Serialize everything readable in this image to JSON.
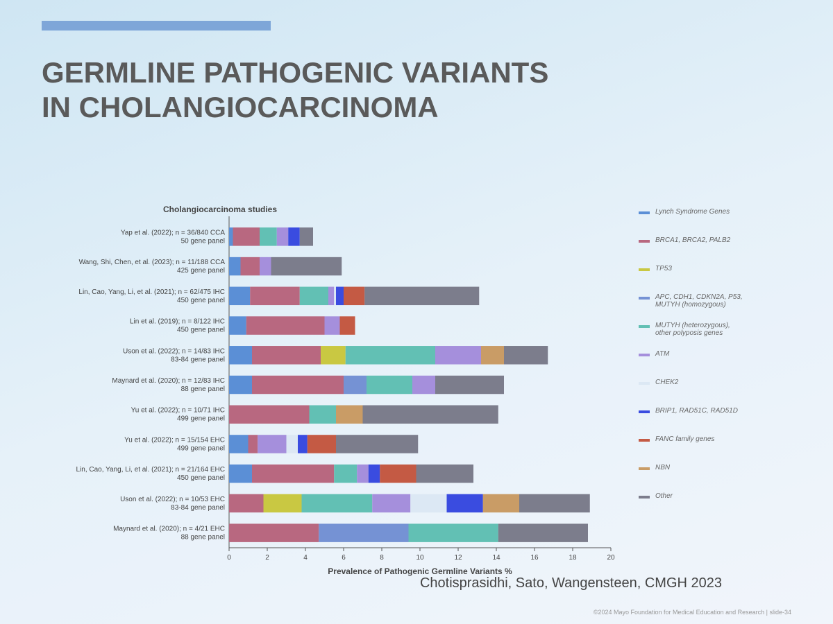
{
  "chart_data": {
    "type": "stacked-barh",
    "title": "GERMLINE PATHOGENIC VARIANTS IN CHOLANGIOCARCINOMA",
    "y_label": "Cholangiocarcinoma studies",
    "x_label": "Prevalence of Pathogenic Germline Variants %",
    "citation": "Chotisprasidhi, Sato, Wangensteen, CMGH 2023",
    "footer": "©2024 Mayo Foundation for Medical Education and Research | slide-34",
    "categories": [
      "Yap et al. (2022); n = 36/840 CCA",
      "Wang, Shi, Chen, et al. (2023); n = 11/188 CCA",
      "Lin, Cao, Yang, Li, et al. (2021); n = 62/475 IHC",
      "Lin et al. (2019); n = 8/122 IHC",
      "Uson et al. (2022); n = 14/83 IHC",
      "Maynard et al. (2020); n = 12/83 IHC",
      "Yu et al. (2022); n = 10/71 IHC",
      "Yu et al. (2022); n = 15/154 EHC",
      "Lin, Cao, Yang, Li, et al. (2021); n = 21/164 EHC",
      "Uson et al. (2022); n = 10/53 EHC",
      "Maynard et al. (2020); n = 4/21 EHC"
    ],
    "panels": [
      "50 gene panel",
      "425 gene panel",
      "450 gene panel",
      "450 gene panel",
      "83-84 gene panel",
      "88 gene panel",
      "499 gene panel",
      "499 gene panel",
      "450 gene panel",
      "83-84 gene panel",
      "88 gene panel"
    ],
    "series": [
      {
        "name": "Lynch Syndrome Genes",
        "color": "#5b8fd6",
        "values": [
          0.2,
          0.6,
          1.1,
          0.9,
          1.2,
          1.2,
          0,
          1.0,
          1.2,
          0,
          0
        ]
      },
      {
        "name": "BRCA1, BRCA2, PALB2",
        "color": "#b86880",
        "values": [
          1.4,
          1.0,
          2.6,
          4.1,
          3.6,
          4.8,
          4.2,
          0.5,
          4.3,
          1.8,
          4.7
        ]
      },
      {
        "name": "TP53",
        "color": "#c9c842",
        "values": [
          0,
          0,
          0,
          0,
          1.3,
          0,
          0,
          0,
          0,
          2.0,
          0
        ]
      },
      {
        "name": "APC, CDH1, CDKN2A, P53, MUTYH (homozygous)",
        "color": "#7592d4",
        "values": [
          0,
          0,
          0,
          0,
          0,
          1.2,
          0,
          0,
          0,
          0,
          4.7
        ]
      },
      {
        "name": "MUTYH (heterozygous), other polyposis genes",
        "color": "#62c0b4",
        "values": [
          0.9,
          0,
          1.5,
          0,
          4.7,
          2.4,
          1.4,
          0,
          1.2,
          3.7,
          4.7
        ]
      },
      {
        "name": "ATM",
        "color": "#a58fdc",
        "values": [
          0.6,
          0.6,
          0.3,
          0.8,
          2.4,
          1.2,
          0,
          1.5,
          0.6,
          2.0,
          0
        ]
      },
      {
        "name": "CHEK2",
        "color": "#dce8f4",
        "values": [
          0,
          0,
          0.1,
          0,
          0,
          0,
          0,
          0.6,
          0,
          1.9,
          0
        ]
      },
      {
        "name": "BRIP1, RAD51C, RAD51D",
        "color": "#3a4ce0",
        "values": [
          0.6,
          0,
          0.4,
          0,
          0,
          0,
          0,
          0.5,
          0.6,
          1.9,
          0
        ]
      },
      {
        "name": "FANC family genes",
        "color": "#c45a44",
        "values": [
          0,
          0,
          1.1,
          0.8,
          0,
          0,
          0,
          1.5,
          1.9,
          0,
          0
        ]
      },
      {
        "name": "NBN",
        "color": "#c99c66",
        "values": [
          0,
          0,
          0,
          0,
          1.2,
          0,
          1.4,
          0,
          0,
          1.9,
          0
        ]
      },
      {
        "name": "Other",
        "color": "#7c7d8c",
        "values": [
          0.7,
          3.7,
          6.0,
          0,
          2.3,
          3.6,
          7.1,
          4.3,
          3.0,
          3.7,
          4.7
        ]
      }
    ],
    "xlim": [
      0,
      20
    ],
    "xticks": [
      0,
      2,
      4,
      6,
      8,
      10,
      12,
      14,
      16,
      18,
      20
    ]
  }
}
